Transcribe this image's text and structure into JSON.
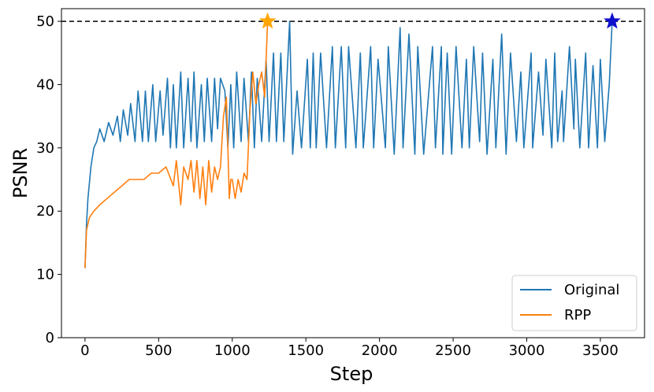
{
  "chart_data": {
    "type": "line",
    "title": "",
    "xlabel": "Step",
    "ylabel": "PSNR",
    "xlim": [
      -160,
      3800
    ],
    "ylim": [
      0,
      52
    ],
    "x_ticks": [
      "0",
      "500",
      "1000",
      "1500",
      "2000",
      "2500",
      "3000",
      "3500"
    ],
    "y_ticks": [
      "0",
      "10",
      "20",
      "30",
      "40",
      "50"
    ],
    "grid": false,
    "legend_position": "lower-right",
    "reference_line": {
      "y": 50,
      "style": "dashed",
      "color": "#000000"
    },
    "series": [
      {
        "name": "Original",
        "color": "#1f77b4",
        "x": [
          0,
          10,
          20,
          40,
          60,
          80,
          100,
          130,
          160,
          190,
          220,
          240,
          260,
          290,
          310,
          340,
          360,
          390,
          410,
          430,
          460,
          480,
          510,
          530,
          560,
          580,
          600,
          620,
          650,
          670,
          700,
          720,
          740,
          760,
          790,
          810,
          830,
          860,
          880,
          900,
          920,
          950,
          970,
          990,
          1010,
          1030,
          1060,
          1080,
          1110,
          1130,
          1150,
          1170,
          1200,
          1230,
          1250,
          1280,
          1300,
          1330,
          1350,
          1390,
          1410,
          1440,
          1470,
          1510,
          1530,
          1550,
          1570,
          1600,
          1640,
          1680,
          1700,
          1740,
          1770,
          1790,
          1840,
          1870,
          1890,
          1940,
          1960,
          1990,
          2040,
          2060,
          2100,
          2140,
          2160,
          2200,
          2240,
          2260,
          2300,
          2360,
          2380,
          2420,
          2430,
          2460,
          2490,
          2520,
          2560,
          2590,
          2610,
          2640,
          2680,
          2700,
          2730,
          2770,
          2790,
          2830,
          2860,
          2890,
          2930,
          2960,
          2980,
          3030,
          3040,
          3080,
          3110,
          3130,
          3170,
          3190,
          3210,
          3240,
          3250,
          3290,
          3320,
          3330,
          3360,
          3400,
          3420,
          3450,
          3480,
          3500,
          3530,
          3560,
          3580
        ],
        "y": [
          11,
          18,
          22,
          27,
          30,
          31,
          33,
          31,
          34,
          32,
          35,
          31,
          36,
          32,
          37,
          31,
          39,
          31,
          39,
          31,
          40,
          31,
          39,
          32,
          41,
          30,
          40,
          30,
          42,
          30,
          41,
          31,
          42,
          30,
          40,
          31,
          41,
          31,
          41,
          33,
          41,
          39,
          30,
          40,
          30,
          42,
          31,
          41,
          31,
          42,
          30,
          41,
          31,
          44,
          31,
          45,
          31,
          45,
          31,
          50,
          29,
          39,
          30,
          44,
          30,
          45,
          30,
          45,
          30,
          46,
          30,
          46,
          30,
          46,
          30,
          45,
          30,
          46,
          30,
          44,
          30,
          46,
          29,
          49,
          30,
          48,
          29,
          46,
          29,
          46,
          30,
          46,
          29,
          45,
          29,
          46,
          30,
          44,
          30,
          46,
          31,
          45,
          29,
          44,
          30,
          48,
          29,
          45,
          31,
          42,
          30,
          45,
          30,
          42,
          32,
          44,
          30,
          45,
          31,
          39,
          31,
          46,
          33,
          44,
          30,
          45,
          30,
          43,
          30,
          44,
          31,
          40,
          50
        ]
      },
      {
        "name": "RPP",
        "color": "#ff7f0e",
        "x": [
          0,
          10,
          30,
          60,
          100,
          150,
          200,
          250,
          300,
          350,
          400,
          450,
          500,
          550,
          600,
          620,
          650,
          670,
          700,
          720,
          740,
          760,
          780,
          800,
          820,
          840,
          860,
          880,
          900,
          920,
          940,
          960,
          970,
          980,
          990,
          1000,
          1020,
          1040,
          1060,
          1080,
          1100,
          1120,
          1140,
          1160,
          1180,
          1200,
          1220,
          1240
        ],
        "y": [
          11,
          17,
          19,
          20,
          21,
          22,
          23,
          24,
          25,
          25,
          25,
          26,
          26,
          27,
          24,
          28,
          21,
          27,
          25,
          28,
          23,
          28,
          22,
          27,
          21,
          28,
          23,
          27,
          25,
          27,
          35,
          38,
          30,
          22,
          25,
          25,
          22,
          25,
          23,
          26,
          25,
          36,
          42,
          37,
          40,
          42,
          38,
          50
        ]
      }
    ],
    "markers": [
      {
        "name": "rpp-star",
        "x": 1240,
        "y": 50,
        "shape": "star",
        "color": "#ffa500"
      },
      {
        "name": "original-star",
        "x": 3580,
        "y": 50,
        "shape": "star",
        "color": "#1010cc"
      }
    ]
  }
}
